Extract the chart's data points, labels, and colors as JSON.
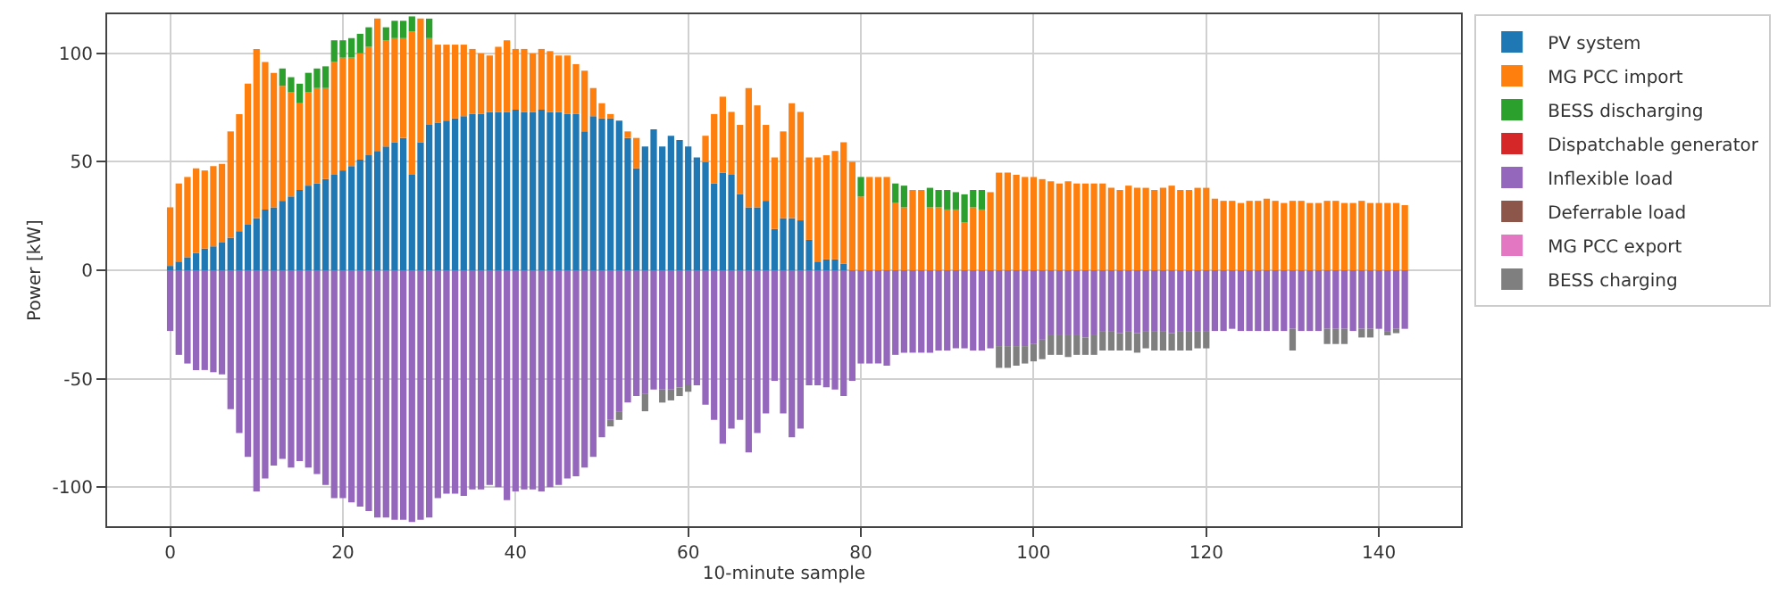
{
  "chart_data": {
    "type": "bar",
    "stacked": true,
    "xlabel": "10-minute sample",
    "ylabel": "Power [kW]",
    "xlim": [
      -7.3,
      149.5
    ],
    "xticks": [
      0,
      20,
      40,
      60,
      80,
      100,
      120,
      140
    ],
    "ylim": [
      -118,
      118
    ],
    "yticks": [
      -100,
      -50,
      0,
      50,
      100
    ],
    "grid": true,
    "legend": "top right",
    "x": [
      0,
      1,
      2,
      3,
      4,
      5,
      6,
      7,
      8,
      9,
      10,
      11,
      12,
      13,
      14,
      15,
      16,
      17,
      18,
      19,
      20,
      21,
      22,
      23,
      24,
      25,
      26,
      27,
      28,
      29,
      30,
      31,
      32,
      33,
      34,
      35,
      36,
      37,
      38,
      39,
      40,
      41,
      42,
      43,
      44,
      45,
      46,
      47,
      48,
      49,
      50,
      51,
      52,
      53,
      54,
      55,
      56,
      57,
      58,
      59,
      60,
      61,
      62,
      63,
      64,
      65,
      66,
      67,
      68,
      69,
      70,
      71,
      72,
      73,
      74,
      75,
      76,
      77,
      78,
      79,
      80,
      81,
      82,
      83,
      84,
      85,
      86,
      87,
      88,
      89,
      90,
      91,
      92,
      93,
      94,
      95,
      96,
      97,
      98,
      99,
      100,
      101,
      102,
      103,
      104,
      105,
      106,
      107,
      108,
      109,
      110,
      111,
      112,
      113,
      114,
      115,
      116,
      117,
      118,
      119,
      120,
      121,
      122,
      123,
      124,
      125,
      126,
      127,
      128,
      129,
      130,
      131,
      132,
      133,
      134,
      135,
      136,
      137,
      138,
      139,
      140,
      141,
      142,
      143
    ],
    "series": [
      {
        "name": "PV system",
        "color": "#1f77b4",
        "values": [
          2,
          4,
          6,
          8,
          10,
          11,
          13,
          15,
          18,
          21,
          24,
          28,
          29,
          32,
          34,
          37,
          39,
          40,
          42,
          44,
          46,
          48,
          51,
          53,
          55,
          57,
          59,
          61,
          44,
          59,
          67,
          68,
          69,
          70,
          71,
          72,
          72,
          73,
          73,
          73,
          74,
          73,
          73,
          74,
          73,
          73,
          72,
          72,
          64,
          71,
          70,
          70,
          69,
          61,
          47,
          57,
          65,
          57,
          62,
          60,
          57,
          52,
          50,
          40,
          45,
          44,
          35,
          29,
          29,
          32,
          19,
          24,
          24,
          23,
          14,
          4,
          5,
          5,
          3,
          null,
          0,
          0,
          0,
          0,
          0,
          0,
          0,
          0,
          0,
          0,
          0,
          0,
          0,
          0,
          0,
          0,
          0,
          0,
          0,
          0,
          0,
          0,
          0,
          0,
          0,
          0,
          0,
          0,
          0,
          0,
          0,
          0,
          0,
          0,
          0,
          0,
          0,
          0,
          0,
          0,
          0,
          0,
          0,
          0,
          0,
          0,
          0,
          0,
          0,
          0,
          0,
          0,
          0,
          0,
          0,
          0,
          0,
          0,
          0,
          0,
          0,
          0,
          0,
          0
        ]
      },
      {
        "name": "MG PCC import",
        "color": "#ff7f0e",
        "values": [
          27,
          36,
          37,
          39,
          36,
          37,
          36,
          49,
          54,
          65,
          78,
          68,
          62,
          53,
          48,
          40,
          43,
          44,
          42,
          52,
          52,
          50,
          49,
          50,
          61,
          49,
          48,
          46,
          66,
          57,
          40,
          36,
          35,
          34,
          33,
          30,
          28,
          26,
          30,
          33,
          28,
          29,
          27,
          28,
          28,
          26,
          27,
          23,
          28,
          13,
          7,
          2,
          0,
          3,
          14,
          0,
          0,
          0,
          0,
          0,
          0,
          0,
          12,
          32,
          35,
          29,
          32,
          55,
          47,
          35,
          33,
          40,
          53,
          50,
          38,
          48,
          48,
          50,
          56,
          50,
          34,
          43,
          43,
          43,
          31,
          29,
          37,
          37,
          29,
          29,
          28,
          28,
          22,
          29,
          28,
          36,
          45,
          45,
          44,
          43,
          43,
          42,
          41,
          40,
          41,
          40,
          40,
          40,
          40,
          38,
          37,
          39,
          38,
          38,
          37,
          38,
          39,
          37,
          37,
          38,
          38,
          33,
          32,
          32,
          31,
          32,
          32,
          33,
          32,
          31,
          32,
          32,
          31,
          31,
          32,
          32,
          31,
          31,
          32,
          31,
          31,
          31,
          31,
          30
        ]
      },
      {
        "name": "BESS discharging",
        "color": "#2ca02c",
        "values": [
          0,
          0,
          0,
          0,
          0,
          0,
          0,
          0,
          0,
          0,
          0,
          0,
          0,
          8,
          7,
          9,
          9,
          9,
          10,
          10,
          8,
          9,
          9,
          9,
          0,
          6,
          8,
          8,
          7,
          0,
          9,
          0,
          0,
          0,
          0,
          0,
          0,
          0,
          0,
          0,
          0,
          0,
          0,
          0,
          0,
          0,
          0,
          0,
          0,
          0,
          0,
          0,
          0,
          0,
          0,
          0,
          0,
          0,
          0,
          0,
          0,
          0,
          0,
          0,
          0,
          0,
          0,
          0,
          0,
          0,
          0,
          0,
          0,
          0,
          0,
          0,
          0,
          0,
          0,
          0,
          9,
          0,
          0,
          0,
          9,
          10,
          0,
          0,
          9,
          8,
          9,
          8,
          13,
          8,
          9,
          0,
          0,
          0,
          0,
          0,
          0,
          0,
          0,
          0,
          0,
          0,
          0,
          0,
          0,
          0,
          0,
          0,
          0,
          0,
          0,
          0,
          0,
          0,
          0,
          0,
          0,
          0,
          0,
          0,
          0,
          0,
          0,
          0,
          0,
          0,
          0,
          0,
          0,
          0,
          0,
          0,
          0,
          0,
          0,
          0,
          0,
          0,
          0,
          0
        ]
      },
      {
        "name": "Dispatchable generator",
        "color": "#d62728",
        "values": [
          0,
          0,
          0,
          0,
          0,
          0,
          0,
          0,
          0,
          0,
          0,
          0,
          0,
          0,
          0,
          0,
          0,
          0,
          0,
          0,
          0,
          0,
          0,
          0,
          0,
          0,
          0,
          0,
          0,
          0,
          0,
          0,
          0,
          0,
          0,
          0,
          0,
          0,
          0,
          0,
          0,
          0,
          0,
          0,
          0,
          0,
          0,
          0,
          0,
          0,
          0,
          0,
          0,
          0,
          0,
          0,
          0,
          0,
          0,
          0,
          0,
          0,
          0,
          0,
          0,
          0,
          0,
          0,
          0,
          0,
          0,
          0,
          0,
          0,
          0,
          0,
          0,
          0,
          0,
          0,
          0,
          0,
          0,
          0,
          0,
          0,
          0,
          0,
          0,
          0,
          0,
          0,
          0,
          0,
          0,
          0,
          0,
          0,
          0,
          0,
          0,
          0,
          0,
          0,
          0,
          0,
          0,
          0,
          0,
          0,
          0,
          0,
          0,
          0,
          0,
          0,
          0,
          0,
          0,
          0,
          0,
          0,
          0,
          0,
          0,
          0,
          0,
          0,
          0,
          0,
          0,
          0,
          0,
          0,
          0,
          0,
          0,
          0,
          0,
          0,
          0,
          0,
          0,
          0
        ]
      },
      {
        "name": "Inflexible load",
        "color": "#9467bd",
        "values": [
          -28,
          -39,
          -43,
          -46,
          -46,
          -47,
          -48,
          -64,
          -75,
          -86,
          -102,
          -96,
          -90,
          -87,
          -91,
          -88,
          -91,
          -94,
          -99,
          -105,
          -105,
          -107,
          -109,
          -111,
          -114,
          -114,
          -115,
          -115,
          -116,
          -115,
          -114,
          -105,
          -103,
          -103,
          -104,
          -101,
          -101,
          -99,
          -100,
          -106,
          -102,
          -101,
          -101,
          -102,
          -100,
          -99,
          -96,
          -95,
          -91,
          -86,
          -77,
          -69,
          -65,
          -61,
          -58,
          -57,
          -55,
          -55,
          -55,
          -54,
          -53,
          -53,
          -62,
          -69,
          -80,
          -73,
          -69,
          -84,
          -75,
          -66,
          -51,
          -66,
          -77,
          -73,
          -53,
          -53,
          -54,
          -55,
          -58,
          -51,
          -43,
          -43,
          -43,
          -44,
          -39,
          -38,
          -38,
          -38,
          -38,
          -37,
          -37,
          -36,
          -36,
          -37,
          -37,
          -36,
          -35,
          -35,
          -35,
          -35,
          -34,
          -32,
          -30,
          -30,
          -30,
          -30,
          -31,
          -30,
          -28,
          -28,
          -29,
          -28,
          -29,
          -28,
          -28,
          -28,
          -29,
          -28,
          -28,
          -28,
          -28,
          -28,
          -28,
          -27,
          -28,
          -28,
          -28,
          -28,
          -28,
          -28,
          -27,
          -28,
          -28,
          -28,
          -27,
          -27,
          -27,
          -28,
          -27,
          -27,
          -27,
          -28,
          -27,
          -27
        ]
      },
      {
        "name": "Deferrable load",
        "color": "#8c564b",
        "values": [
          0,
          0,
          0,
          0,
          0,
          0,
          0,
          0,
          0,
          0,
          0,
          0,
          0,
          0,
          0,
          0,
          0,
          0,
          0,
          0,
          0,
          0,
          0,
          0,
          0,
          0,
          0,
          0,
          0,
          0,
          0,
          0,
          0,
          0,
          0,
          0,
          0,
          0,
          0,
          0,
          0,
          0,
          0,
          0,
          0,
          0,
          0,
          0,
          0,
          0,
          0,
          0,
          0,
          0,
          0,
          0,
          0,
          0,
          0,
          0,
          0,
          0,
          0,
          0,
          0,
          0,
          0,
          0,
          0,
          0,
          0,
          0,
          0,
          0,
          0,
          0,
          0,
          0,
          0,
          0,
          0,
          0,
          0,
          0,
          0,
          0,
          0,
          0,
          0,
          0,
          0,
          0,
          0,
          0,
          0,
          0,
          0,
          0,
          0,
          0,
          0,
          0,
          0,
          0,
          0,
          0,
          0,
          0,
          0,
          0,
          0,
          0,
          0,
          0,
          0,
          0,
          0,
          0,
          0,
          0,
          0,
          0,
          0,
          0,
          0,
          0,
          0,
          0,
          0,
          0,
          0,
          0,
          0,
          0,
          0,
          0,
          0,
          0,
          0,
          0,
          0,
          0,
          0,
          0
        ]
      },
      {
        "name": "MG PCC export",
        "color": "#e377c2",
        "values": [
          0,
          0,
          0,
          0,
          0,
          0,
          0,
          0,
          0,
          0,
          0,
          0,
          0,
          0,
          0,
          0,
          0,
          0,
          0,
          0,
          0,
          0,
          0,
          0,
          0,
          0,
          0,
          0,
          0,
          0,
          0,
          0,
          0,
          0,
          0,
          0,
          0,
          0,
          0,
          0,
          0,
          0,
          0,
          0,
          0,
          0,
          0,
          0,
          0,
          0,
          0,
          0,
          0,
          0,
          0,
          0,
          0,
          0,
          0,
          0,
          0,
          0,
          0,
          0,
          0,
          0,
          0,
          0,
          0,
          0,
          0,
          0,
          0,
          0,
          0,
          0,
          0,
          0,
          0,
          0,
          0,
          0,
          0,
          0,
          0,
          0,
          0,
          0,
          0,
          0,
          0,
          0,
          0,
          0,
          0,
          0,
          0,
          0,
          0,
          0,
          0,
          0,
          0,
          0,
          0,
          0,
          0,
          0,
          0,
          0,
          0,
          0,
          0,
          0,
          0,
          0,
          0,
          0,
          0,
          0,
          0,
          0,
          0,
          0,
          0,
          0,
          0,
          0,
          0,
          0,
          0,
          0,
          0,
          0,
          0,
          0,
          0,
          0,
          0,
          0,
          0,
          0,
          0,
          0
        ]
      },
      {
        "name": "BESS charging",
        "color": "#7f7f7f",
        "values": [
          0,
          0,
          0,
          0,
          0,
          0,
          0,
          0,
          0,
          0,
          0,
          0,
          0,
          0,
          0,
          0,
          0,
          0,
          0,
          0,
          0,
          0,
          0,
          0,
          0,
          0,
          0,
          0,
          0,
          0,
          0,
          0,
          0,
          0,
          0,
          0,
          0,
          0,
          0,
          0,
          0,
          0,
          0,
          0,
          0,
          0,
          0,
          0,
          0,
          0,
          0,
          -3,
          -4,
          0,
          0,
          -8,
          0,
          -6,
          -5,
          -4,
          -3,
          0,
          0,
          0,
          0,
          0,
          0,
          0,
          0,
          0,
          0,
          0,
          0,
          0,
          0,
          0,
          0,
          0,
          0,
          0,
          0,
          0,
          0,
          0,
          0,
          0,
          0,
          0,
          0,
          0,
          0,
          0,
          0,
          0,
          0,
          0,
          -10,
          -10,
          -9,
          -8,
          -8,
          -9,
          -9,
          -9,
          -10,
          -9,
          -8,
          -9,
          -9,
          -9,
          -8,
          -9,
          -9,
          -8,
          -9,
          -9,
          -8,
          -9,
          -9,
          -8,
          -8,
          0,
          0,
          0,
          0,
          0,
          0,
          0,
          0,
          0,
          -10,
          0,
          0,
          0,
          -7,
          -7,
          -7,
          0,
          -4,
          -4,
          0,
          -2,
          -2,
          0
        ]
      }
    ]
  }
}
